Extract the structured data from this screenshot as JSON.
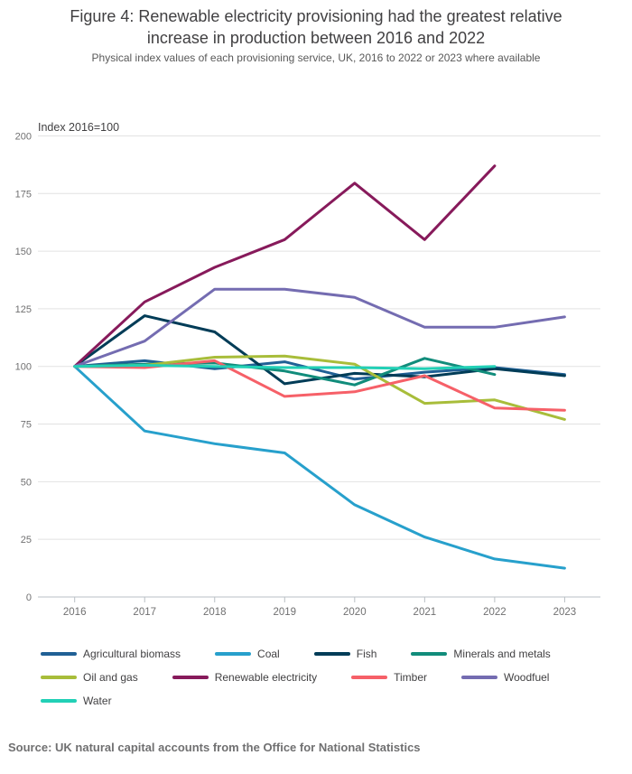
{
  "header": {
    "title": "Figure 4: Renewable electricity provisioning had the greatest relative increase in production between 2016 and 2022",
    "subtitle": "Physical index values of each provisioning service, UK, 2016 to 2022 or 2023 where available"
  },
  "chart_data": {
    "type": "line",
    "title": "Figure 4: Renewable electricity provisioning had the greatest relative increase in production between 2016 and 2022",
    "subtitle": "Physical index values of each provisioning service, UK, 2016 to 2022 or 2023 where available",
    "y_axis_label": "Index 2016=100",
    "x": [
      2016,
      2017,
      2018,
      2019,
      2020,
      2021,
      2022,
      2023
    ],
    "ylim": [
      0,
      200
    ],
    "yticks": [
      0,
      25,
      50,
      75,
      100,
      125,
      150,
      175,
      200
    ],
    "grid": true,
    "legend_position": "bottom",
    "grid_color": "#e2e2e2",
    "axis_color": "#b9bfc4",
    "tick_label_color": "#707071",
    "series": [
      {
        "name": "Agricultural biomass",
        "color": "#206095",
        "values": [
          100,
          102.5,
          99,
          102,
          94.5,
          97.5,
          99.5,
          96.5
        ]
      },
      {
        "name": "Coal",
        "color": "#27A0CC",
        "values": [
          100,
          72,
          66.5,
          62.5,
          40,
          26,
          16.5,
          12.5
        ]
      },
      {
        "name": "Fish",
        "color": "#003C57",
        "values": [
          100,
          122,
          115,
          92.5,
          97,
          95.5,
          99,
          96
        ]
      },
      {
        "name": "Minerals and metals",
        "color": "#118C7B",
        "values": [
          100,
          101,
          101.5,
          98,
          92,
          103.5,
          96.5,
          null
        ]
      },
      {
        "name": "Oil and gas",
        "color": "#A8BD3A",
        "values": [
          100,
          100.5,
          104,
          104.5,
          101,
          84,
          85.5,
          77
        ]
      },
      {
        "name": "Renewable electricity",
        "color": "#871A5B",
        "values": [
          100,
          128,
          143,
          155,
          179.5,
          155,
          187,
          null
        ]
      },
      {
        "name": "Timber",
        "color": "#F66068",
        "values": [
          100,
          99.5,
          102.5,
          87,
          89,
          96,
          82,
          81
        ]
      },
      {
        "name": "Woodfuel",
        "color": "#746CB1",
        "values": [
          100,
          111,
          133.5,
          133.5,
          130,
          117,
          117,
          121.5
        ]
      },
      {
        "name": "Water",
        "color": "#22D0B6",
        "values": [
          100,
          100.5,
          100,
          99.5,
          99.5,
          99,
          100,
          null
        ]
      }
    ]
  },
  "footer": {
    "source": "Source: UK natural capital accounts from the Office for National Statistics"
  }
}
